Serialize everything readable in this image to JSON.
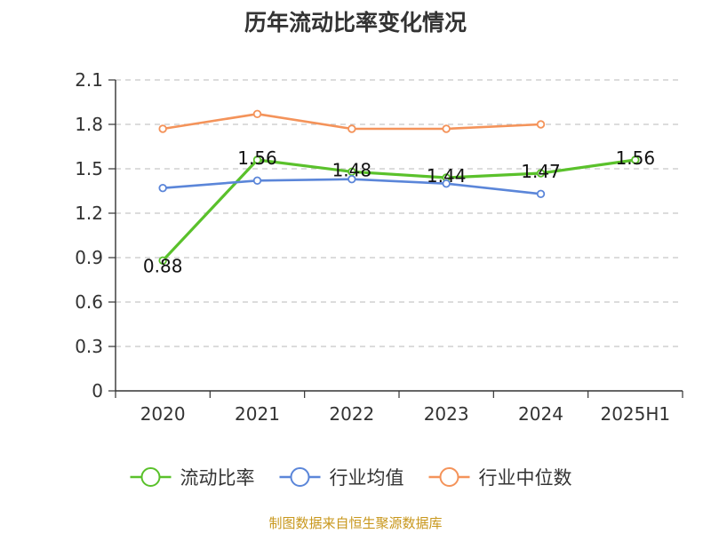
{
  "title": "历年流动比率变化情况",
  "source": "制图数据来自恒生聚源数据库",
  "chart_data": {
    "type": "line",
    "categories": [
      "2020",
      "2021",
      "2022",
      "2023",
      "2024",
      "2025H1"
    ],
    "ylim": [
      0,
      2.1
    ],
    "yticks": [
      0,
      0.3,
      0.6,
      0.9,
      1.2,
      1.5,
      1.8,
      2.1
    ],
    "ytick_labels": [
      "0",
      "0.3",
      "0.6",
      "0.9",
      "1.2",
      "1.5",
      "1.8",
      "2.1"
    ],
    "grid": true,
    "legend_position": "bottom",
    "series": [
      {
        "name": "流动比率",
        "color": "#5ac12b",
        "values": [
          0.88,
          1.56,
          1.48,
          1.44,
          1.47,
          1.56
        ],
        "labels": [
          "0.88",
          "1.56",
          "1.48",
          "1.44",
          "1.47",
          "1.56"
        ],
        "show_labels": true
      },
      {
        "name": "行业均值",
        "color": "#5b86d9",
        "values": [
          1.37,
          1.42,
          1.43,
          1.4,
          1.33,
          null
        ]
      },
      {
        "name": "行业中位数",
        "color": "#f4935a",
        "values": [
          1.77,
          1.87,
          1.77,
          1.77,
          1.8,
          null
        ]
      }
    ]
  }
}
